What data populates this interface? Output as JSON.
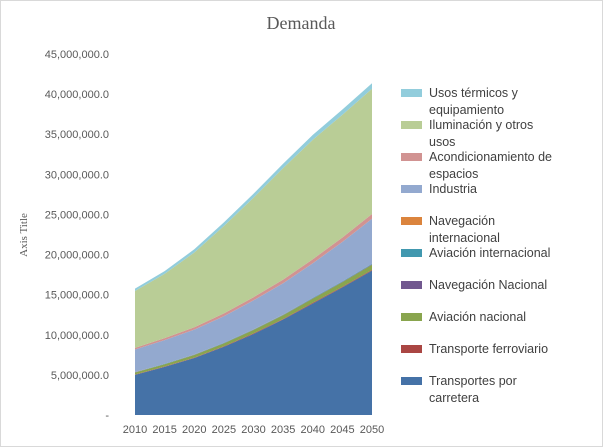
{
  "chart_data": {
    "type": "area",
    "stacked": true,
    "title": "Demanda",
    "xlabel": "",
    "ylabel": "Axis Title",
    "x": [
      "2010",
      "2015",
      "2020",
      "2025",
      "2030",
      "2035",
      "2040",
      "2045",
      "2050"
    ],
    "ylim": [
      0,
      45000000
    ],
    "yticks": [
      0,
      5000000,
      10000000,
      15000000,
      20000000,
      25000000,
      30000000,
      35000000,
      40000000,
      45000000
    ],
    "ytick_labels": [
      "-",
      "5,000,000.0",
      "10,000,000.0",
      "15,000,000.0",
      "20,000,000.0",
      "25,000,000.0",
      "30,000,000.0",
      "35,000,000.0",
      "40,000,000.0",
      "45,000,000.0"
    ],
    "grid": false,
    "legend_position": "right",
    "series": [
      {
        "name": "Transportes por carretera",
        "color": "#4572a7",
        "values": [
          5000000,
          6000000,
          7100000,
          8500000,
          10100000,
          11900000,
          13900000,
          15900000,
          18000000
        ]
      },
      {
        "name": "Transporte ferroviario",
        "color": "#aa4643",
        "values": [
          50000,
          50000,
          60000,
          60000,
          70000,
          70000,
          80000,
          80000,
          90000
        ]
      },
      {
        "name": "Aviación nacional",
        "color": "#89a54e",
        "values": [
          250000,
          280000,
          320000,
          370000,
          420000,
          470000,
          530000,
          590000,
          650000
        ]
      },
      {
        "name": "Navegación Nacional",
        "color": "#71588f",
        "values": [
          20000,
          20000,
          20000,
          30000,
          30000,
          30000,
          40000,
          40000,
          40000
        ]
      },
      {
        "name": "Aviación internacional",
        "color": "#4198af",
        "values": [
          30000,
          30000,
          40000,
          40000,
          50000,
          50000,
          60000,
          60000,
          70000
        ]
      },
      {
        "name": "Navegación internacional",
        "color": "#db843d",
        "values": [
          10000,
          10000,
          10000,
          10000,
          10000,
          10000,
          10000,
          10000,
          10000
        ]
      },
      {
        "name": "Industria",
        "color": "#93a9cf",
        "values": [
          2800000,
          2950000,
          3100000,
          3300000,
          3600000,
          3900000,
          4300000,
          4900000,
          5600000
        ]
      },
      {
        "name": "Acondicionamiento de espacios",
        "color": "#d19392",
        "values": [
          200000,
          250000,
          300000,
          350000,
          400000,
          450000,
          500000,
          550000,
          600000
        ]
      },
      {
        "name": "Iluminación y otros usos",
        "color": "#b9cd96",
        "values": [
          7100000,
          8000000,
          9300000,
          10900000,
          12400000,
          13900000,
          14900000,
          15300000,
          15600000
        ]
      },
      {
        "name": "Usos térmicos y equipamiento",
        "color": "#92cddc",
        "values": [
          300000,
          350000,
          400000,
          450000,
          500000,
          550000,
          600000,
          650000,
          700000
        ]
      }
    ]
  }
}
